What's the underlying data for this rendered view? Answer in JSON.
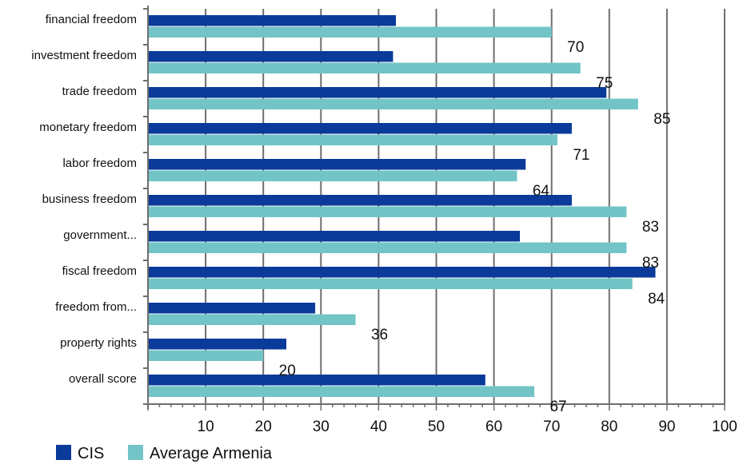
{
  "chart_data": {
    "type": "bar",
    "orientation": "horizontal",
    "categories": [
      "financial freedom",
      "investment freedom",
      "trade freedom",
      "monetary freedom",
      "labor freedom",
      "business freedom",
      "government...",
      "fiscal freedom",
      "freedom from...",
      "property rights",
      "overall score"
    ],
    "series": [
      {
        "name": "CIS",
        "color": "#0a3a9a",
        "values": [
          43,
          42.5,
          79.5,
          73.5,
          65.5,
          73.5,
          64.5,
          88,
          29,
          24,
          58.5
        ],
        "show_labels": false
      },
      {
        "name": "Average Armenia",
        "color": "#72c4c6",
        "values": [
          70,
          75,
          85,
          71,
          64,
          83,
          83,
          84,
          36,
          20,
          67
        ],
        "show_labels": true
      }
    ],
    "data_labels": [
      "70",
      "75",
      "85",
      "71",
      "64",
      "83",
      "83",
      "84",
      "36",
      "20",
      "67"
    ],
    "xlim": [
      0,
      100
    ],
    "xticks": [
      10,
      20,
      30,
      40,
      50,
      60,
      70,
      80,
      90,
      100
    ],
    "grid": true,
    "legend": {
      "position": "bottom-left",
      "entries": [
        "CIS",
        "Average Armenia"
      ]
    }
  }
}
